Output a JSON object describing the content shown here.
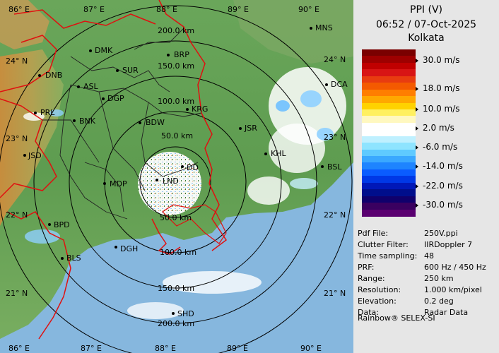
{
  "header": {
    "product": "PPI (V)",
    "datetime": "06:52 / 07-Oct-2025",
    "station": "Kolkata"
  },
  "colors": {
    "land": "#5f9e52",
    "sea": "#86b7de",
    "rings": "#000000",
    "border": "#e01010",
    "district_lines": "#222222"
  },
  "colorbar": {
    "ticks": [
      "30.0 m/s",
      "18.0 m/s",
      "10.0 m/s",
      "2.0 m/s",
      "-6.0 m/s",
      "-14.0 m/s",
      "-22.0 m/s",
      "-30.0 m/s"
    ],
    "colors": [
      "#7a0000",
      "#9e0000",
      "#c00000",
      "#d81515",
      "#e83c10",
      "#f45a00",
      "#ff7e00",
      "#ffa800",
      "#ffd200",
      "#fff060",
      "#fff8c0",
      "#ffffff",
      "#ffffff",
      "#bff0ff",
      "#8ee4ff",
      "#5fcaff",
      "#3aa8ff",
      "#1e84ff",
      "#0a5cff",
      "#0038e6",
      "#0018b8",
      "#000e8c",
      "#10006c",
      "#3a0060",
      "#5a0070"
    ]
  },
  "map": {
    "lon_labels_top": [
      "86° E",
      "87° E",
      "88° E",
      "89° E",
      "90° E"
    ],
    "lon_labels_bottom": [
      "86° E",
      "87° E",
      "88° E",
      "89° E",
      "90° E"
    ],
    "lat_labels_left": [
      "24° N",
      "23° N",
      "22° N",
      "21° N"
    ],
    "lat_labels_right": [
      "24° N",
      "23° N",
      "22° N",
      "21° N"
    ],
    "range_rings": [
      "50.0 km",
      "100.0 km",
      "150.0 km",
      "200.0 km"
    ],
    "range_rings_south": [
      "50.0 km",
      "100.0 km",
      "150.0 km",
      "200.0 km"
    ],
    "cities": [
      "MNS",
      "DMK",
      "BRP",
      "DNB",
      "SUR",
      "DCA",
      "ASL",
      "DGP",
      "PRL",
      "KRG",
      "BNK",
      "BDW",
      "JSR",
      "KHL",
      "JSD",
      "DD",
      "BSL",
      "MDP",
      "LND",
      "BPD",
      "DGH",
      "BLS",
      "SHD"
    ]
  },
  "info": {
    "rows": [
      {
        "key": "Pdf File:",
        "value": "250V.ppi"
      },
      {
        "key": "Clutter Filter:",
        "value": "IIRDoppler 7"
      },
      {
        "key": "Time sampling:",
        "value": "48"
      },
      {
        "key": "PRF:",
        "value": "600 Hz / 450 Hz"
      },
      {
        "key": "Range:",
        "value": "250 km"
      },
      {
        "key": "Resolution:",
        "value": "1.000 km/pixel"
      },
      {
        "key": "Elevation:",
        "value": "0.2 deg"
      },
      {
        "key": "Data:",
        "value": "Radar Data"
      }
    ],
    "footer": "Rainbow® SELEX-SI"
  }
}
